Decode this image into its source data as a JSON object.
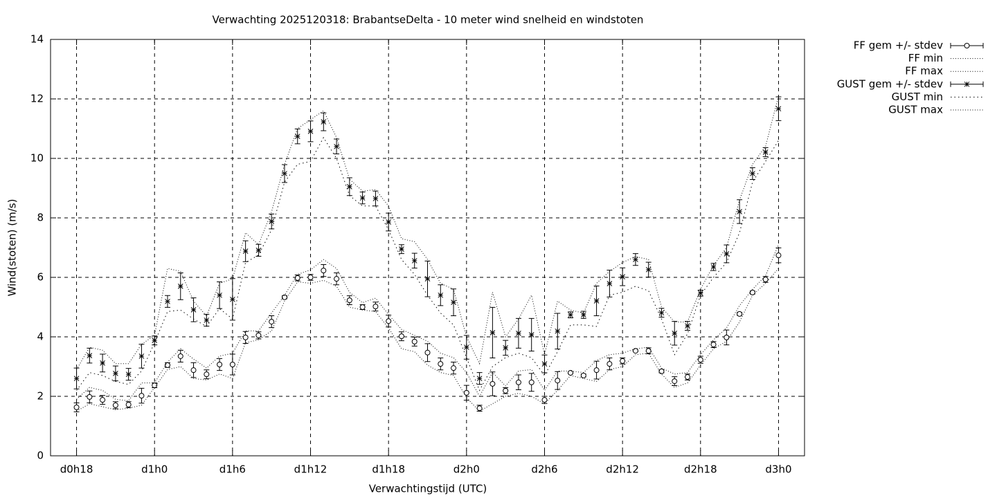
{
  "chart_data": {
    "type": "errorbar-line",
    "title": "Verwachting 2025120318: BrabantseDelta - 10 meter wind snelheid en windstoten",
    "x_label": "Verwachtingstijd (UTC)",
    "y_label": "Wind(stoten) (m/s)",
    "xlim": [
      16,
      74
    ],
    "xticks": [
      {
        "value": 18,
        "label": "d0h18"
      },
      {
        "value": 24,
        "label": "d1h0"
      },
      {
        "value": 30,
        "label": "d1h6"
      },
      {
        "value": 36,
        "label": "d1h12"
      },
      {
        "value": 42,
        "label": "d1h18"
      },
      {
        "value": 48,
        "label": "d2h0"
      },
      {
        "value": 54,
        "label": "d2h6"
      },
      {
        "value": 60,
        "label": "d2h12"
      },
      {
        "value": 66,
        "label": "d2h18"
      },
      {
        "value": 72,
        "label": "d3h0"
      }
    ],
    "ylim": [
      0,
      14
    ],
    "yticks": [
      0,
      2,
      4,
      6,
      8,
      10,
      12,
      14
    ],
    "grid": true,
    "legend_position": "outside-top-right",
    "x": [
      18,
      19,
      20,
      21,
      22,
      23,
      24,
      25,
      26,
      27,
      28,
      29,
      30,
      31,
      32,
      33,
      34,
      35,
      36,
      37,
      38,
      39,
      40,
      41,
      42,
      43,
      44,
      45,
      46,
      47,
      48,
      49,
      50,
      51,
      52,
      53,
      54,
      55,
      56,
      57,
      58,
      59,
      60,
      61,
      62,
      63,
      64,
      65,
      66,
      67,
      68,
      69,
      70,
      71,
      72
    ],
    "series": [
      {
        "name": "FF gem +/- stdev",
        "color": "#000000",
        "style": "errorbar",
        "marker": "circle",
        "values": [
          1.63,
          1.98,
          1.88,
          1.7,
          1.72,
          2.02,
          2.37,
          3.05,
          3.35,
          2.88,
          2.74,
          3.07,
          3.07,
          3.98,
          4.05,
          4.51,
          5.33,
          5.98,
          6.0,
          6.23,
          5.95,
          5.23,
          5.0,
          5.02,
          4.53,
          4.02,
          3.84,
          3.47,
          3.09,
          2.95,
          2.12,
          1.6,
          2.42,
          2.19,
          2.47,
          2.47,
          1.88,
          2.53,
          2.79,
          2.7,
          2.88,
          3.09,
          3.19,
          3.53,
          3.53,
          2.84,
          2.51,
          2.65,
          3.23,
          3.74,
          3.98,
          4.77,
          5.49,
          5.93,
          6.74
        ],
        "errors": [
          0.15,
          0.2,
          0.15,
          0.12,
          0.1,
          0.25,
          0.08,
          0.08,
          0.2,
          0.25,
          0.15,
          0.2,
          0.35,
          0.2,
          0.12,
          0.2,
          0.05,
          0.1,
          0.1,
          0.2,
          0.2,
          0.15,
          0.08,
          0.15,
          0.2,
          0.15,
          0.15,
          0.3,
          0.2,
          0.2,
          0.25,
          0.1,
          0.4,
          0.1,
          0.25,
          0.3,
          0.12,
          0.3,
          0.03,
          0.05,
          0.3,
          0.2,
          0.1,
          0.03,
          0.1,
          0.05,
          0.15,
          0.1,
          0.12,
          0.1,
          0.25,
          0.05,
          0.05,
          0.1,
          0.25
        ]
      },
      {
        "name": "FF min",
        "color": "#000000",
        "style": "dotted",
        "values": [
          1.5,
          1.75,
          1.65,
          1.55,
          1.6,
          1.7,
          2.3,
          2.9,
          3.0,
          2.6,
          2.55,
          2.75,
          2.6,
          3.8,
          3.9,
          4.2,
          5.2,
          5.85,
          5.8,
          5.9,
          5.7,
          5.0,
          4.9,
          4.85,
          4.3,
          3.6,
          3.5,
          3.05,
          2.8,
          2.7,
          1.95,
          1.5,
          1.75,
          2.0,
          2.1,
          2.0,
          1.75,
          2.2,
          2.7,
          2.6,
          2.5,
          2.9,
          3.0,
          3.4,
          3.45,
          2.75,
          2.3,
          2.45,
          3.05,
          3.6,
          3.85,
          4.5,
          5.4,
          5.8,
          6.3
        ]
      },
      {
        "name": "FF max",
        "color": "#000000",
        "style": "dotted",
        "values": [
          1.9,
          2.3,
          2.2,
          1.9,
          1.85,
          2.45,
          2.45,
          3.15,
          3.6,
          3.25,
          2.95,
          3.35,
          3.45,
          4.2,
          4.2,
          4.8,
          5.4,
          6.1,
          6.25,
          6.6,
          6.3,
          5.5,
          5.15,
          5.3,
          4.75,
          4.25,
          4.05,
          3.85,
          3.45,
          3.3,
          2.8,
          2.0,
          2.8,
          2.35,
          2.85,
          2.9,
          2.2,
          2.85,
          2.85,
          2.8,
          3.2,
          3.4,
          3.45,
          3.6,
          3.65,
          2.95,
          2.75,
          2.8,
          3.4,
          3.9,
          4.3,
          5.05,
          5.6,
          6.05,
          7.1
        ]
      },
      {
        "name": "GUST gem +/- stdev",
        "color": "#000000",
        "style": "errorbar",
        "marker": "star",
        "values": [
          2.6,
          3.37,
          3.12,
          2.77,
          2.74,
          3.35,
          3.88,
          5.19,
          5.7,
          4.91,
          4.56,
          5.4,
          5.26,
          6.88,
          6.91,
          7.88,
          9.49,
          10.74,
          10.91,
          11.23,
          10.4,
          9.05,
          8.67,
          8.65,
          7.86,
          6.95,
          6.56,
          5.95,
          5.4,
          5.16,
          3.65,
          2.6,
          4.14,
          3.63,
          4.12,
          4.07,
          3.09,
          4.19,
          4.74,
          4.74,
          5.21,
          5.79,
          6.02,
          6.6,
          6.26,
          4.81,
          4.12,
          4.37,
          5.47,
          6.35,
          6.79,
          8.21,
          9.49,
          10.21,
          11.67
        ],
        "errors": [
          0.35,
          0.25,
          0.3,
          0.25,
          0.2,
          0.4,
          0.15,
          0.2,
          0.45,
          0.4,
          0.2,
          0.45,
          0.7,
          0.35,
          0.2,
          0.25,
          0.3,
          0.25,
          0.35,
          0.3,
          0.25,
          0.3,
          0.2,
          0.25,
          0.3,
          0.15,
          0.25,
          0.6,
          0.35,
          0.45,
          0.4,
          0.2,
          0.85,
          0.25,
          0.5,
          0.55,
          0.3,
          0.6,
          0.1,
          0.12,
          0.5,
          0.45,
          0.3,
          0.2,
          0.25,
          0.15,
          0.4,
          0.15,
          0.1,
          0.12,
          0.3,
          0.4,
          0.2,
          0.15,
          0.4
        ]
      },
      {
        "name": "GUST min",
        "color": "#000000",
        "style": "dotted-coarse",
        "values": [
          2.2,
          2.8,
          2.7,
          2.5,
          2.4,
          2.85,
          3.8,
          4.85,
          4.9,
          4.6,
          4.35,
          4.95,
          4.6,
          6.5,
          6.75,
          7.6,
          9.2,
          9.8,
          9.9,
          10.7,
          10.0,
          8.75,
          8.4,
          8.4,
          7.6,
          6.6,
          6.1,
          5.4,
          4.8,
          4.4,
          3.3,
          2.2,
          3.0,
          3.3,
          3.45,
          3.3,
          2.7,
          3.5,
          4.4,
          4.4,
          4.35,
          5.4,
          5.5,
          5.7,
          5.55,
          4.6,
          3.4,
          4.1,
          5.4,
          6.0,
          6.5,
          7.5,
          9.2,
          9.9,
          10.6
        ]
      },
      {
        "name": "GUST max",
        "color": "#000000",
        "style": "dotted",
        "values": [
          2.9,
          3.65,
          3.55,
          3.1,
          3.1,
          3.75,
          4.05,
          6.3,
          6.2,
          5.2,
          4.7,
          5.8,
          5.95,
          7.5,
          7.1,
          8.2,
          9.8,
          11.0,
          11.3,
          11.6,
          10.7,
          9.3,
          8.9,
          8.95,
          8.4,
          7.3,
          7.2,
          6.6,
          5.8,
          5.6,
          4.0,
          3.1,
          5.5,
          4.0,
          4.6,
          5.4,
          3.4,
          5.2,
          4.9,
          4.8,
          5.8,
          6.2,
          6.5,
          6.7,
          6.6,
          5.0,
          4.5,
          4.5,
          5.6,
          6.4,
          7.0,
          8.6,
          9.8,
          10.4,
          12.1
        ]
      }
    ]
  }
}
